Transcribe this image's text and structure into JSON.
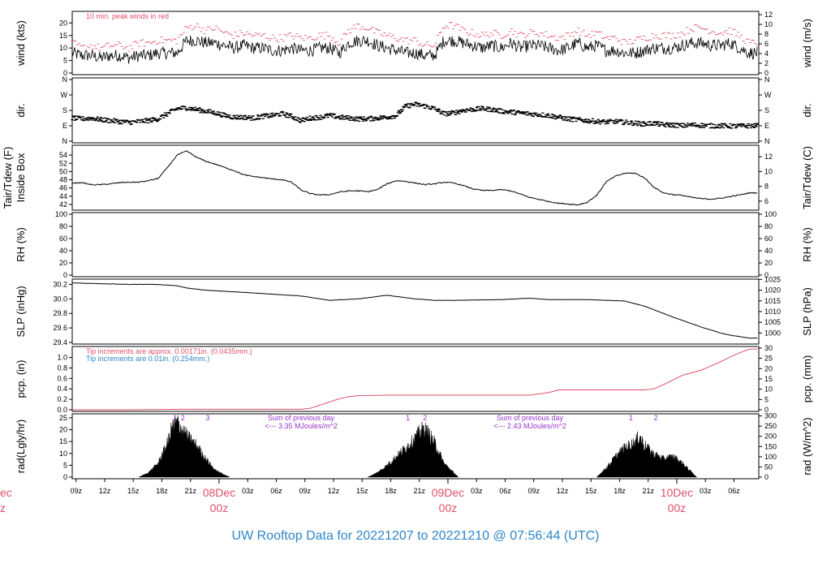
{
  "footer": {
    "title": "UW Rooftop Data for 20221207  to  20221210 @ 07:56:44  (UTC)"
  },
  "colors": {
    "red": "#e0506a",
    "blue": "#2e86c8",
    "purple": "#9933cc",
    "ink": "#000000"
  },
  "x_axis": {
    "time_labels": [
      "09z",
      "12z",
      "15z",
      "18z",
      "21z",
      "03z",
      "06z",
      "09z",
      "12z",
      "15z",
      "18z",
      "21z",
      "03z",
      "06z",
      "09z",
      "12z",
      "15z",
      "18z",
      "21z",
      "03z",
      "06z"
    ],
    "day_labels": [
      {
        "date": "08Dec",
        "time": "00z"
      },
      {
        "date": "09Dec",
        "time": "00z"
      },
      {
        "date": "10Dec",
        "time": "00z"
      }
    ],
    "left_clipped": {
      "date": "ec",
      "time": "z"
    }
  },
  "chart_data": [
    {
      "type": "line",
      "panel": "wind",
      "ylabel_left": "wind (kts)",
      "ylabel_right": "wind (m/s)",
      "yticks_left": [
        "0",
        "5",
        "10",
        "15",
        "20"
      ],
      "yticks_right": [
        "0",
        "2",
        "4",
        "6",
        "8",
        "10",
        "12"
      ],
      "ylim": [
        0,
        24
      ],
      "annotation": "10 min. peak winds in red",
      "x_hours": [
        0,
        1,
        2,
        3,
        4,
        5,
        6,
        7,
        8,
        9,
        10,
        11,
        12,
        13,
        14,
        15,
        16,
        17,
        18,
        19,
        20,
        21,
        22,
        23,
        24,
        25,
        26,
        27,
        28,
        29,
        30,
        31,
        32,
        33,
        34,
        35,
        36,
        37,
        38,
        39,
        40,
        41,
        42,
        43,
        44,
        45,
        46,
        47,
        48,
        49,
        50,
        51,
        52,
        53,
        54,
        55,
        56,
        57,
        58,
        59,
        60,
        61,
        62,
        63,
        64,
        65,
        66,
        67,
        68,
        69,
        70,
        71
      ],
      "values": [
        8,
        7,
        7,
        6,
        7,
        7,
        6,
        7,
        7,
        8,
        8,
        8,
        13,
        13,
        12,
        12,
        11,
        10,
        11,
        10,
        10,
        9,
        9,
        10,
        9,
        9,
        10,
        10,
        8,
        12,
        13,
        13,
        11,
        10,
        9,
        8,
        8,
        7,
        7,
        13,
        13,
        12,
        11,
        10,
        11,
        10,
        12,
        10,
        11,
        11,
        10,
        9,
        10,
        12,
        10,
        11,
        9,
        9,
        8,
        8,
        9,
        10,
        10,
        10,
        11,
        12,
        12,
        11,
        11,
        12,
        10,
        8
      ],
      "peak_values": [
        12,
        10,
        11,
        10,
        11,
        11,
        10,
        12,
        12,
        13,
        13,
        13,
        18,
        19,
        17,
        18,
        16,
        15,
        16,
        15,
        15,
        14,
        14,
        15,
        14,
        14,
        15,
        15,
        12,
        17,
        19,
        18,
        16,
        15,
        14,
        13,
        13,
        11,
        11,
        19,
        19,
        17,
        16,
        15,
        16,
        15,
        17,
        15,
        16,
        16,
        15,
        14,
        15,
        17,
        15,
        16,
        14,
        14,
        12,
        13,
        14,
        15,
        15,
        15,
        16,
        18,
        18,
        17,
        16,
        17,
        15,
        12
      ]
    },
    {
      "type": "scatter",
      "panel": "dir",
      "ylabel_left": "dir.",
      "ylabel_right": "dir.",
      "yticks_left": [
        "N",
        "E",
        "S",
        "W",
        "N"
      ],
      "yticks_right": [
        "N",
        "E",
        "S",
        "W",
        "N"
      ],
      "ylim": [
        0,
        360
      ],
      "x_hours": [
        0,
        1,
        2,
        3,
        4,
        5,
        6,
        7,
        8,
        9,
        10,
        11,
        12,
        13,
        14,
        15,
        16,
        17,
        18,
        19,
        20,
        21,
        22,
        23,
        24,
        25,
        26,
        27,
        28,
        29,
        30,
        31,
        32,
        33,
        34,
        35,
        36,
        37,
        38,
        39,
        40,
        41,
        42,
        43,
        44,
        45,
        46,
        47,
        48,
        49,
        50,
        51,
        52,
        53,
        54,
        55,
        56,
        57,
        58,
        59,
        60,
        61,
        62,
        63,
        64,
        65,
        66,
        67,
        68,
        69,
        70,
        71
      ],
      "values": [
        135,
        130,
        135,
        125,
        120,
        115,
        110,
        115,
        120,
        130,
        160,
        190,
        195,
        185,
        175,
        165,
        150,
        140,
        140,
        135,
        145,
        150,
        160,
        145,
        120,
        135,
        140,
        150,
        140,
        135,
        130,
        130,
        135,
        140,
        150,
        205,
        215,
        205,
        190,
        160,
        165,
        180,
        185,
        190,
        185,
        175,
        170,
        165,
        160,
        155,
        150,
        140,
        130,
        125,
        120,
        115,
        112,
        115,
        110,
        105,
        100,
        105,
        95,
        95,
        90,
        95,
        92,
        90,
        90,
        88,
        88,
        90
      ]
    },
    {
      "type": "line",
      "panel": "tair",
      "ylabel_left": "Tair/Tdew (F)",
      "ylabel_left2": "Inside Box",
      "ylabel_right": "Tair/Tdew (C)",
      "yticks_left": [
        "42",
        "44",
        "46",
        "48",
        "50",
        "52",
        "54"
      ],
      "yticks_right": [
        "6",
        "8",
        "10",
        "12"
      ],
      "ylim": [
        41,
        56
      ],
      "x_hours": [
        0,
        1,
        2,
        3,
        4,
        5,
        6,
        7,
        8,
        9,
        10,
        11,
        12,
        13,
        14,
        15,
        16,
        17,
        18,
        19,
        20,
        21,
        22,
        23,
        24,
        25,
        26,
        27,
        28,
        29,
        30,
        31,
        32,
        33,
        34,
        35,
        36,
        37,
        38,
        39,
        40,
        41,
        42,
        43,
        44,
        45,
        46,
        47,
        48,
        49,
        50,
        51,
        52,
        53,
        54,
        55,
        56,
        57,
        58,
        59,
        60,
        61,
        62,
        63,
        64,
        65,
        66,
        67,
        68,
        69,
        70,
        71
      ],
      "values": [
        47.2,
        47.3,
        46.8,
        46.8,
        47.0,
        47.3,
        47.4,
        47.4,
        47.8,
        48.3,
        51.0,
        54.0,
        55.0,
        53.5,
        52.5,
        51.8,
        51.0,
        50.2,
        49.2,
        48.8,
        48.5,
        48.2,
        48.0,
        47.4,
        45.5,
        44.6,
        44.3,
        44.4,
        45.0,
        45.3,
        45.3,
        45.1,
        45.6,
        47.0,
        47.8,
        47.6,
        47.2,
        46.8,
        47.0,
        47.4,
        47.2,
        46.6,
        45.8,
        45.4,
        45.4,
        45.6,
        45.3,
        44.5,
        43.7,
        43.2,
        42.7,
        42.3,
        42.1,
        41.9,
        42.5,
        44.2,
        47.5,
        48.9,
        49.6,
        49.6,
        48.5,
        46.2,
        44.8,
        44.4,
        44.2,
        43.7,
        43.4,
        43.3,
        43.5,
        43.9,
        44.3,
        44.8
      ]
    },
    {
      "type": "line",
      "panel": "rh",
      "ylabel_left": "RH (%)",
      "ylabel_right": "RH (%)",
      "yticks_left": [
        "0",
        "20",
        "40",
        "60",
        "80",
        "100"
      ],
      "yticks_right": [
        "0",
        "20",
        "40",
        "60",
        "80",
        "100"
      ],
      "ylim": [
        0,
        100
      ],
      "values": []
    },
    {
      "type": "line",
      "panel": "slp",
      "ylabel_left": "SLP (inHg)",
      "ylabel_right": "SLP (hPa)",
      "yticks_left": [
        "29.4",
        "29.6",
        "29.8",
        "30.0",
        "30.2"
      ],
      "yticks_right": [
        "1000",
        "1005",
        "1010",
        "1015",
        "1020",
        "1025"
      ],
      "ylim": [
        29.4,
        30.25
      ],
      "x_hours": [
        0,
        3,
        6,
        9,
        11,
        12,
        14,
        18,
        24,
        27,
        30,
        33,
        36,
        38,
        40,
        45,
        48,
        50,
        54,
        58,
        60,
        63,
        66,
        67,
        68,
        69,
        70,
        71
      ],
      "values": [
        30.22,
        30.21,
        30.2,
        30.2,
        30.18,
        30.15,
        30.12,
        30.09,
        30.04,
        29.98,
        30.0,
        30.05,
        30.0,
        29.98,
        29.98,
        29.99,
        30.01,
        29.99,
        29.99,
        29.97,
        29.9,
        29.75,
        29.61,
        29.57,
        29.53,
        29.5,
        29.48,
        29.46
      ]
    },
    {
      "type": "line",
      "panel": "pcp",
      "ylabel_left": "pcp. (in)",
      "ylabel_right": "pcp. (mm)",
      "yticks_left": [
        "0.0",
        "0.2",
        "0.4",
        "0.6",
        "0.8",
        "1.0"
      ],
      "yticks_right": [
        "0",
        "5",
        "10",
        "15",
        "20",
        "25",
        "30"
      ],
      "ylim": [
        0,
        1.18
      ],
      "annotation_red": "Tip increments are approx. 0.00171in. (0.0435mm.)",
      "annotation_blue": "Tip increments are 0.01in. (0.254mm.)",
      "x_hours": [
        0,
        6,
        12,
        18,
        24,
        25,
        26,
        27,
        28,
        29,
        30,
        33,
        36,
        40,
        45,
        48,
        50,
        51,
        52,
        56,
        60,
        61,
        62,
        63,
        64,
        65,
        66,
        67,
        68,
        69,
        70,
        71
      ],
      "values": [
        0.0,
        0.0,
        0.01,
        0.01,
        0.01,
        0.03,
        0.09,
        0.15,
        0.21,
        0.25,
        0.27,
        0.28,
        0.28,
        0.28,
        0.28,
        0.28,
        0.33,
        0.38,
        0.38,
        0.38,
        0.38,
        0.4,
        0.48,
        0.57,
        0.66,
        0.71,
        0.76,
        0.84,
        0.92,
        1.01,
        1.09,
        1.16
      ]
    },
    {
      "type": "area",
      "panel": "rad",
      "ylabel_left": "rad(Lgly/hr)",
      "ylabel_right": "rad (W/m^2)",
      "yticks_left": [
        "0",
        "5",
        "10",
        "15",
        "20",
        "25"
      ],
      "yticks_right": [
        "0",
        "50",
        "100",
        "150",
        "200",
        "250",
        "300"
      ],
      "ylim": [
        0,
        26
      ],
      "markers": [
        {
          "label": "1",
          "x_hour": 10.8
        },
        {
          "label": "2",
          "x_hour": 11.6
        },
        {
          "label": "3",
          "x_hour": 14.2
        },
        {
          "label": "1",
          "x_hour": 35.2
        },
        {
          "label": "2",
          "x_hour": 37.0
        },
        {
          "label": "1",
          "x_hour": 58.6
        },
        {
          "label": "2",
          "x_hour": 61.2
        }
      ],
      "notes": [
        {
          "line1": "Sum of previous day",
          "line2": "<--- 3.35 MJoules/m^2",
          "x_hour": 24.0
        },
        {
          "line1": "Sum of previous day",
          "line2": "<--- 2.43 MJoules/m^2",
          "x_hour": 48.0
        }
      ],
      "days": [
        {
          "x_hours": [
            7,
            8,
            9,
            10,
            10.5,
            11,
            11.5,
            12,
            13,
            14,
            15,
            16,
            16.5
          ],
          "values": [
            0,
            2,
            6,
            15,
            22,
            24,
            21,
            18,
            14,
            8,
            3,
            1,
            0
          ]
        },
        {
          "x_hours": [
            31,
            32,
            33,
            34,
            35,
            36,
            36.5,
            37,
            37.5,
            38,
            39,
            40,
            40.5
          ],
          "values": [
            0,
            2,
            5,
            9,
            13,
            17,
            20,
            21,
            18,
            15,
            6,
            2,
            0
          ]
        },
        {
          "x_hours": [
            55,
            56,
            57,
            58,
            59,
            59.5,
            60,
            61,
            62,
            63,
            64,
            65,
            65.5
          ],
          "values": [
            0,
            4,
            9,
            13,
            15,
            18,
            14,
            10,
            8,
            9,
            6,
            2,
            0
          ]
        }
      ]
    }
  ]
}
